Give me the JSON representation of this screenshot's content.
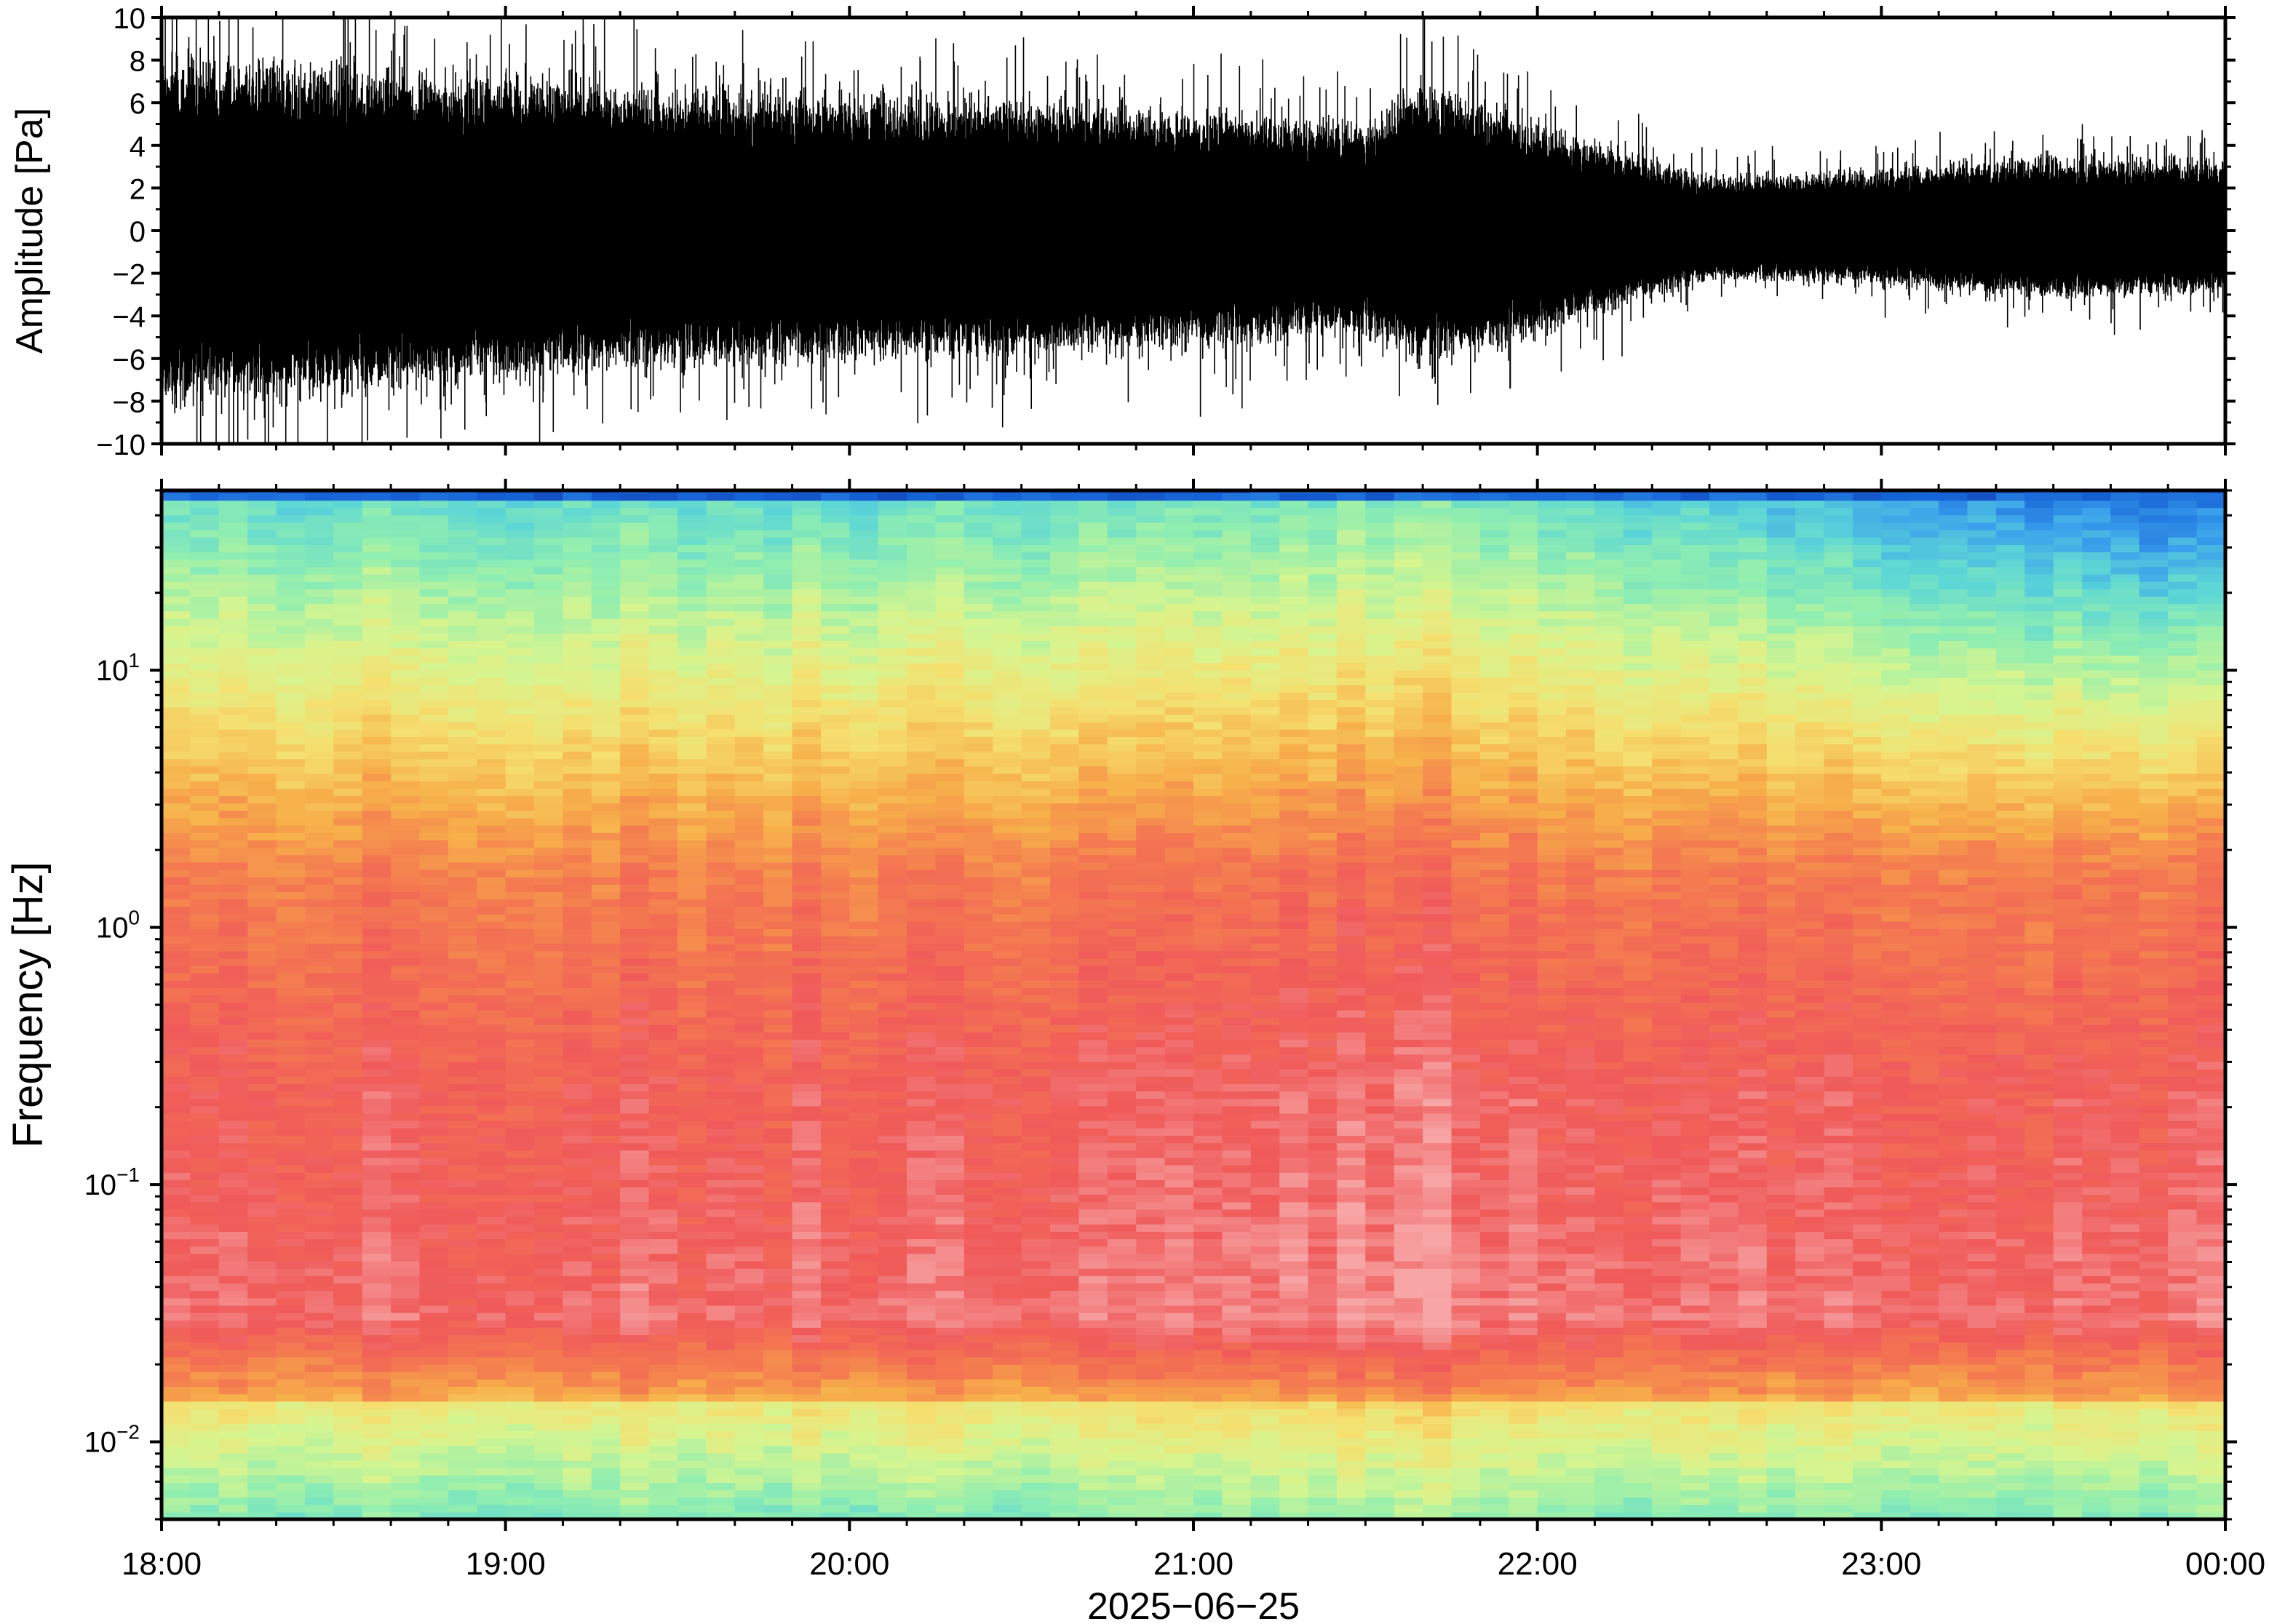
{
  "chart_data": [
    {
      "type": "line",
      "panel": "waveform",
      "ylabel": "Amplitude [Pa]",
      "ylim": [
        -10,
        10
      ],
      "yticks": [
        -10,
        -8,
        -6,
        -4,
        -2,
        0,
        2,
        4,
        6,
        8,
        10
      ],
      "ytick_labels": [
        "−10",
        "−8",
        "−6",
        "−4",
        "−2",
        "0",
        "2",
        "4",
        "6",
        "8",
        "10"
      ],
      "xlim": [
        "18:00",
        "00:00"
      ],
      "color": "#000000",
      "envelope": {
        "x": [
          "18:00",
          "18:30",
          "19:00",
          "19:30",
          "20:00",
          "20:30",
          "21:00",
          "21:30",
          "21:40",
          "22:00",
          "22:15",
          "22:30",
          "23:00",
          "23:30",
          "00:00"
        ],
        "upper": [
          6.5,
          6.0,
          5.8,
          5.2,
          5.0,
          4.8,
          4.4,
          4.0,
          5.5,
          4.0,
          3.0,
          2.0,
          2.3,
          2.8,
          2.5
        ],
        "lower": [
          -6.5,
          -6.0,
          -5.5,
          -5.0,
          -4.8,
          -4.6,
          -4.2,
          -3.8,
          -5.0,
          -3.8,
          -2.8,
          -1.8,
          -2.0,
          -2.5,
          -2.3
        ]
      }
    },
    {
      "type": "heatmap",
      "panel": "spectrogram",
      "ylabel": "Frequency [Hz]",
      "yscale": "log",
      "ylim": [
        0.005,
        50
      ],
      "yticks": [
        0.01,
        0.1,
        1,
        10
      ],
      "ytick_labels": [
        {
          "base": "10",
          "exp": "−2"
        },
        {
          "base": "10",
          "exp": "−1"
        },
        {
          "base": "10",
          "exp": "0"
        },
        {
          "base": "10",
          "exp": "1"
        }
      ],
      "xlabel": "2025−06−25",
      "xlim": [
        "18:00",
        "00:00"
      ],
      "xtick_labels": [
        "18:00",
        "19:00",
        "20:00",
        "21:00",
        "22:00",
        "23:00",
        "00:00"
      ],
      "colormap": [
        "#0a0a6e",
        "#1560d6",
        "#3aa0ec",
        "#5cd6d6",
        "#90eeb0",
        "#d6f590",
        "#f5e070",
        "#f7b04a",
        "#f47a50",
        "#f05a5a",
        "#f7a5a5"
      ]
    }
  ]
}
